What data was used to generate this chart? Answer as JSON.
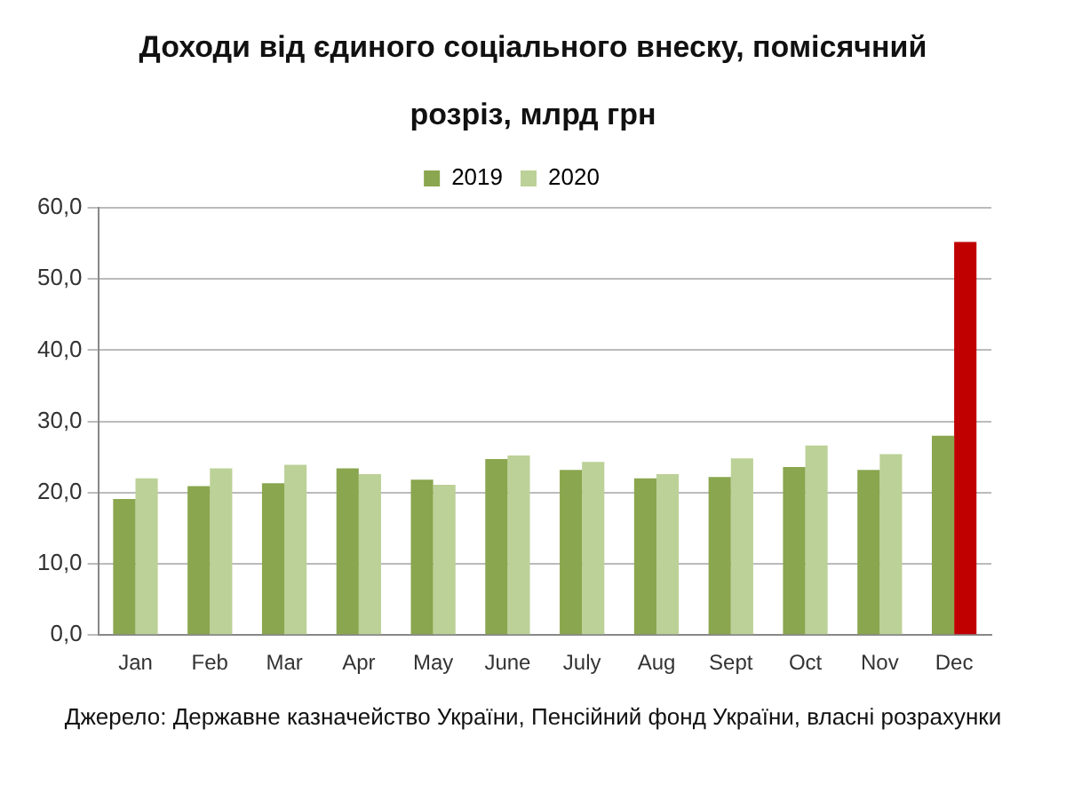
{
  "chart_data": {
    "type": "bar",
    "title": "Доходи від єдиного соціального внеску, помісячний розріз, млрд грн",
    "categories": [
      "Jan",
      "Feb",
      "Mar",
      "Apr",
      "May",
      "June",
      "July",
      "Aug",
      "Sept",
      "Oct",
      "Nov",
      "Dec"
    ],
    "series": [
      {
        "name": "2019",
        "color": "#8aa64e",
        "values": [
          19.1,
          20.9,
          21.3,
          23.4,
          21.8,
          24.7,
          23.2,
          22.0,
          22.2,
          23.6,
          23.2,
          28.0
        ]
      },
      {
        "name": "2020",
        "color": "#bcd197",
        "colors": [
          "#bcd197",
          "#bcd197",
          "#bcd197",
          "#bcd197",
          "#bcd197",
          "#bcd197",
          "#bcd197",
          "#bcd197",
          "#bcd197",
          "#bcd197",
          "#bcd197",
          "#c00000"
        ],
        "values": [
          22.0,
          23.4,
          23.9,
          22.6,
          21.1,
          25.2,
          24.3,
          22.6,
          24.8,
          26.6,
          25.4,
          55.2
        ]
      }
    ],
    "ylim": [
      0,
      60
    ],
    "yticks": [
      {
        "value": 0,
        "label": "0,0"
      },
      {
        "value": 10,
        "label": "10,0"
      },
      {
        "value": 20,
        "label": "20,0"
      },
      {
        "value": 30,
        "label": "30,0"
      },
      {
        "value": 40,
        "label": "40,0"
      },
      {
        "value": 50,
        "label": "50,0"
      },
      {
        "value": 60,
        "label": "60,0"
      }
    ],
    "grid": "y",
    "legend": "top",
    "annotations": [
      "Джерело: Державне казначейство України, Пенсійний фонд України, власні розрахунки"
    ]
  }
}
